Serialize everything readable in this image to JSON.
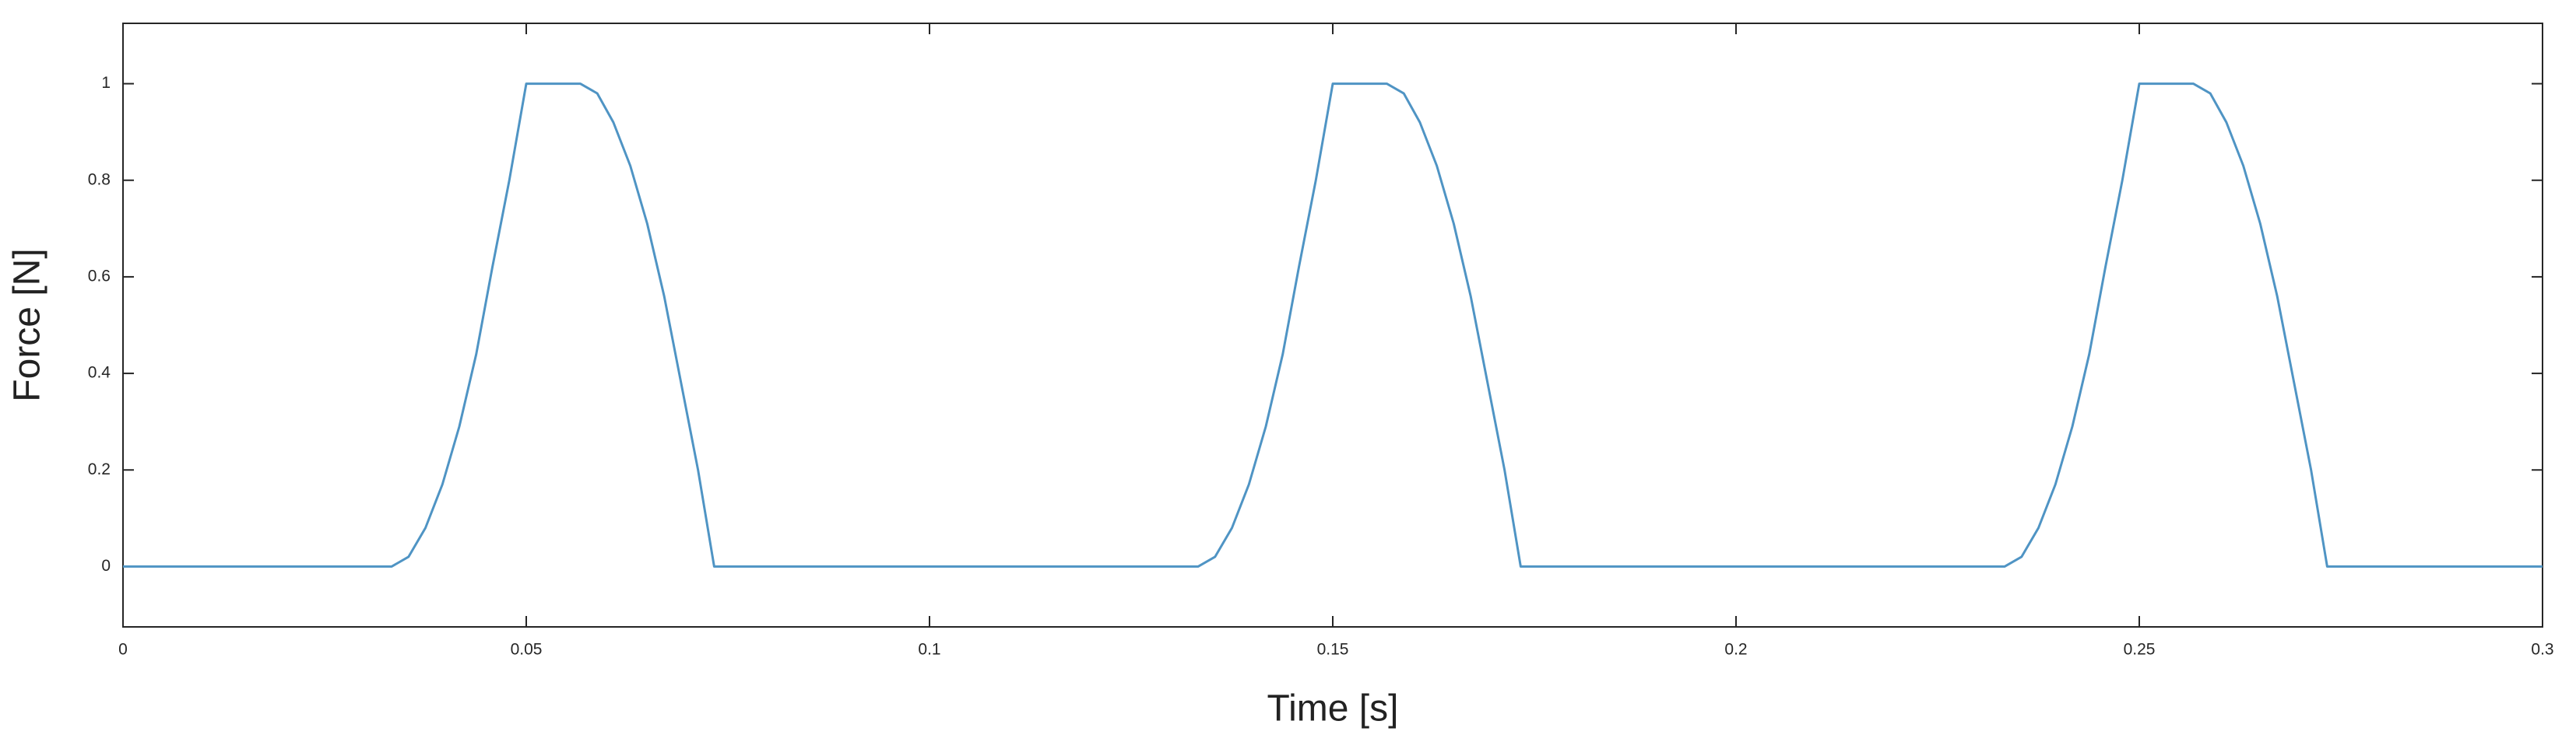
{
  "chart_data": {
    "type": "line",
    "x_label": "Time [s]",
    "y_label": "Force [N]",
    "x": [
      0,
      0.0333,
      0.0354,
      0.0375,
      0.0396,
      0.0417,
      0.0438,
      0.0458,
      0.0479,
      0.05,
      0.0567,
      0.0588,
      0.0608,
      0.0629,
      0.065,
      0.0671,
      0.0692,
      0.0713,
      0.0733,
      0.1333,
      0.1354,
      0.1375,
      0.1396,
      0.1417,
      0.1438,
      0.1458,
      0.1479,
      0.15,
      0.1567,
      0.1588,
      0.1608,
      0.1629,
      0.165,
      0.1671,
      0.1692,
      0.1713,
      0.1733,
      0.2333,
      0.2354,
      0.2375,
      0.2396,
      0.2417,
      0.2438,
      0.2458,
      0.2479,
      0.25,
      0.2567,
      0.2588,
      0.2608,
      0.2629,
      0.265,
      0.2671,
      0.2692,
      0.2713,
      0.2733,
      0.3
    ],
    "values": [
      0,
      0,
      0.02,
      0.08,
      0.17,
      0.29,
      0.44,
      0.62,
      0.8,
      1,
      1,
      0.98,
      0.92,
      0.83,
      0.71,
      0.56,
      0.38,
      0.2,
      0,
      0,
      0.02,
      0.08,
      0.17,
      0.29,
      0.44,
      0.62,
      0.8,
      1,
      1,
      0.98,
      0.92,
      0.83,
      0.71,
      0.56,
      0.38,
      0.2,
      0,
      0,
      0.02,
      0.08,
      0.17,
      0.29,
      0.44,
      0.62,
      0.8,
      1,
      1,
      0.98,
      0.92,
      0.83,
      0.71,
      0.56,
      0.38,
      0.2,
      0,
      0
    ],
    "color": "#4f94c4",
    "xlim": [
      0,
      0.3
    ],
    "xticks": [
      0,
      0.05,
      0.1,
      0.15,
      0.2,
      0.25,
      0.3
    ],
    "ylim": [
      -0.125,
      1.125
    ],
    "yticks": [
      0,
      0.2,
      0.4,
      0.6,
      0.8,
      1
    ],
    "grid": false
  }
}
